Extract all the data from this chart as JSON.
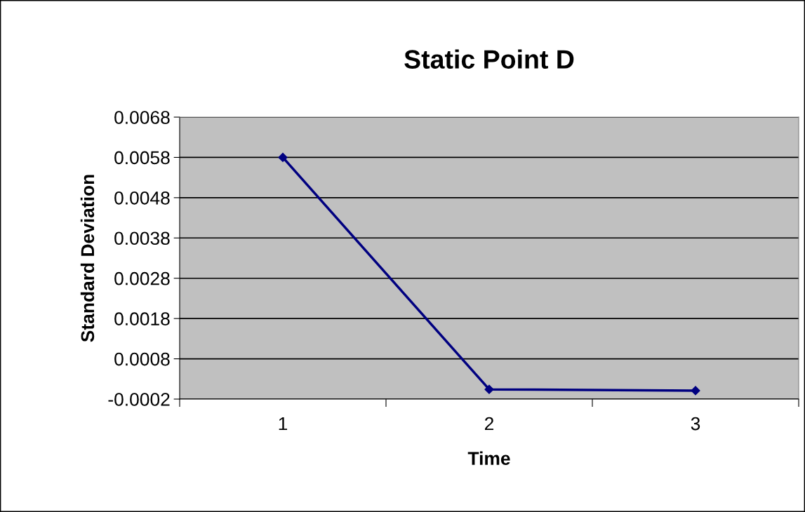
{
  "chart_data": {
    "type": "line",
    "title": "Static Point D",
    "xlabel": "Time",
    "ylabel": "Standard Deviation",
    "categories": [
      "1",
      "2",
      "3"
    ],
    "series": [
      {
        "color": "#000080",
        "values": [
          0.0058,
          4e-05,
          1e-05
        ]
      }
    ],
    "ylim": [
      -0.0002,
      0.0068
    ],
    "yticks": [
      -0.0002,
      0.0008,
      0.0018,
      0.0028,
      0.0038,
      0.0048,
      0.0058,
      0.0068
    ],
    "grid": "y",
    "marker": "diamond",
    "line_style": "solid",
    "legend": false
  }
}
